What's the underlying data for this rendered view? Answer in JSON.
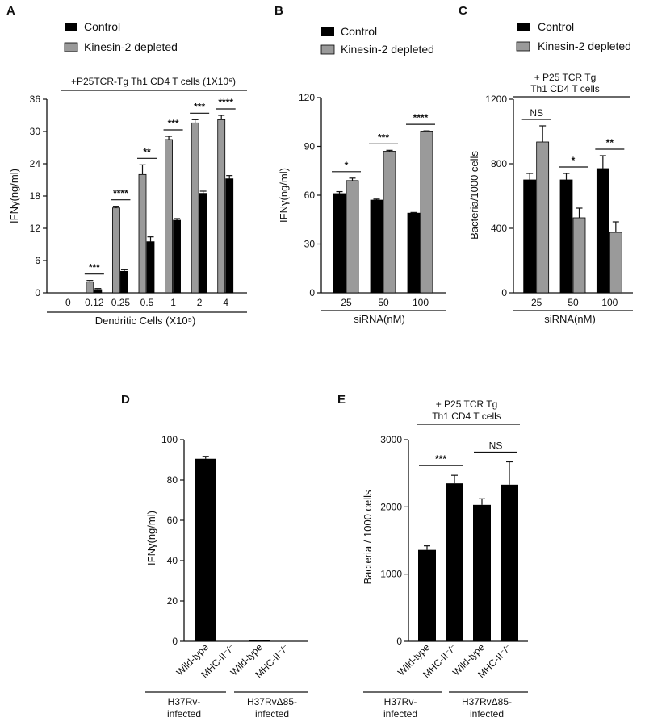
{
  "colors": {
    "control": "#000000",
    "kd": "#9a9a9a",
    "axis": "#111111"
  },
  "legend": {
    "control": "Control",
    "kd": "Kinesin-2 depleted"
  },
  "chart_data": [
    {
      "id": "A",
      "letter": "A",
      "type": "bar",
      "condition": "+P25TCR-Tg Th1 CD4 T cells (1X10⁶)",
      "categories": [
        "0",
        "0.12",
        "0.25",
        "0.5",
        "1",
        "2",
        "4"
      ],
      "xlabel": "Dendritic Cells (X10⁵)",
      "ylabel": "IFNγ(ng/ml)",
      "ylim": [
        0,
        36
      ],
      "yticks": [
        0,
        6,
        12,
        18,
        24,
        30,
        36
      ],
      "series": [
        {
          "name": "Kinesin-2 depleted",
          "key": "kd",
          "values": [
            0,
            2.0,
            15.8,
            22.0,
            28.5,
            31.6,
            32.2
          ],
          "errors": [
            0,
            0.3,
            0.3,
            1.8,
            0.6,
            0.6,
            0.8
          ]
        },
        {
          "name": "Control",
          "key": "control",
          "values": [
            0,
            0.6,
            4.0,
            9.5,
            13.5,
            18.5,
            21.2
          ],
          "errors": [
            0,
            0.2,
            0.3,
            0.9,
            0.3,
            0.4,
            0.6
          ]
        }
      ],
      "significance": [
        {
          "category": 1,
          "label": "***"
        },
        {
          "category": 2,
          "label": "****"
        },
        {
          "category": 3,
          "label": "**"
        },
        {
          "category": 4,
          "label": "***"
        },
        {
          "category": 5,
          "label": "***"
        },
        {
          "category": 6,
          "label": "****"
        }
      ]
    },
    {
      "id": "B",
      "letter": "B",
      "type": "bar",
      "categories": [
        "25",
        "50",
        "100"
      ],
      "xlabel": "siRNA(nM)",
      "ylabel": "IFNγ(ng/ml)",
      "ylim": [
        0,
        120
      ],
      "yticks": [
        0,
        30,
        60,
        90,
        120
      ],
      "series": [
        {
          "name": "Control",
          "key": "control",
          "values": [
            61,
            57,
            49
          ],
          "errors": [
            1.2,
            0.6,
            0.4
          ]
        },
        {
          "name": "Kinesin-2 depleted",
          "key": "kd",
          "values": [
            69,
            87,
            99
          ],
          "errors": [
            1.5,
            0.6,
            0.6
          ]
        }
      ],
      "significance": [
        {
          "category": 0,
          "label": "*"
        },
        {
          "category": 1,
          "label": "***"
        },
        {
          "category": 2,
          "label": "****"
        }
      ]
    },
    {
      "id": "C",
      "letter": "C",
      "type": "bar",
      "condition": "+ P25 TCR Tg Th1 CD4 T cells",
      "condition_lines": [
        "+ P25 TCR Tg",
        "Th1 CD4 T cells"
      ],
      "categories": [
        "25",
        "50",
        "100"
      ],
      "xlabel": "siRNA(nM)",
      "ylabel": "Bacteria/1000 cells",
      "ylim": [
        0,
        1200
      ],
      "yticks": [
        0,
        400,
        800,
        1200
      ],
      "series": [
        {
          "name": "Control",
          "key": "control",
          "values": [
            700,
            700,
            770
          ],
          "errors": [
            40,
            40,
            80
          ]
        },
        {
          "name": "Kinesin-2 depleted",
          "key": "kd",
          "values": [
            935,
            465,
            375
          ],
          "errors": [
            100,
            60,
            65
          ]
        }
      ],
      "significance": [
        {
          "category": 0,
          "label": "NS"
        },
        {
          "category": 1,
          "label": "*"
        },
        {
          "category": 2,
          "label": "**"
        }
      ]
    },
    {
      "id": "D",
      "letter": "D",
      "type": "bar",
      "categories": [
        "Wild-type",
        "MHC-II⁻/⁻",
        "Wild-type",
        "MHC-II⁻/⁻"
      ],
      "groups": [
        {
          "lines": [
            "H37Rv-",
            "infected"
          ]
        },
        {
          "lines": [
            "H37RvΔ85-",
            "infected"
          ]
        }
      ],
      "ylabel": "IFNγ(ng/ml)",
      "ylim": [
        0,
        100
      ],
      "yticks": [
        0,
        20,
        40,
        60,
        80,
        100
      ],
      "values": [
        90.5,
        0,
        0.5,
        0
      ],
      "errors": [
        1.2,
        0,
        0,
        0
      ]
    },
    {
      "id": "E",
      "letter": "E",
      "type": "bar",
      "condition": "+ P25 TCR Tg Th1 CD4 T cells",
      "condition_lines": [
        "+ P25 TCR Tg",
        "Th1 CD4 T cells"
      ],
      "categories": [
        "Wild-type",
        "MHC-II⁻/⁻",
        "Wild-type",
        "MHC-II⁻/⁻"
      ],
      "groups": [
        {
          "lines": [
            "H37Rv-",
            "infected"
          ]
        },
        {
          "lines": [
            "H37RvΔ85-",
            "infected"
          ]
        }
      ],
      "ylabel": "Bacteria / 1000 cells",
      "ylim": [
        0,
        3000
      ],
      "yticks": [
        0,
        1000,
        2000,
        3000
      ],
      "values": [
        1360,
        2350,
        2030,
        2330
      ],
      "errors": [
        60,
        120,
        90,
        340
      ],
      "significance": [
        {
          "from": 0,
          "to": 1,
          "label": "***"
        },
        {
          "from": 2,
          "to": 3,
          "label": "NS"
        }
      ]
    }
  ]
}
